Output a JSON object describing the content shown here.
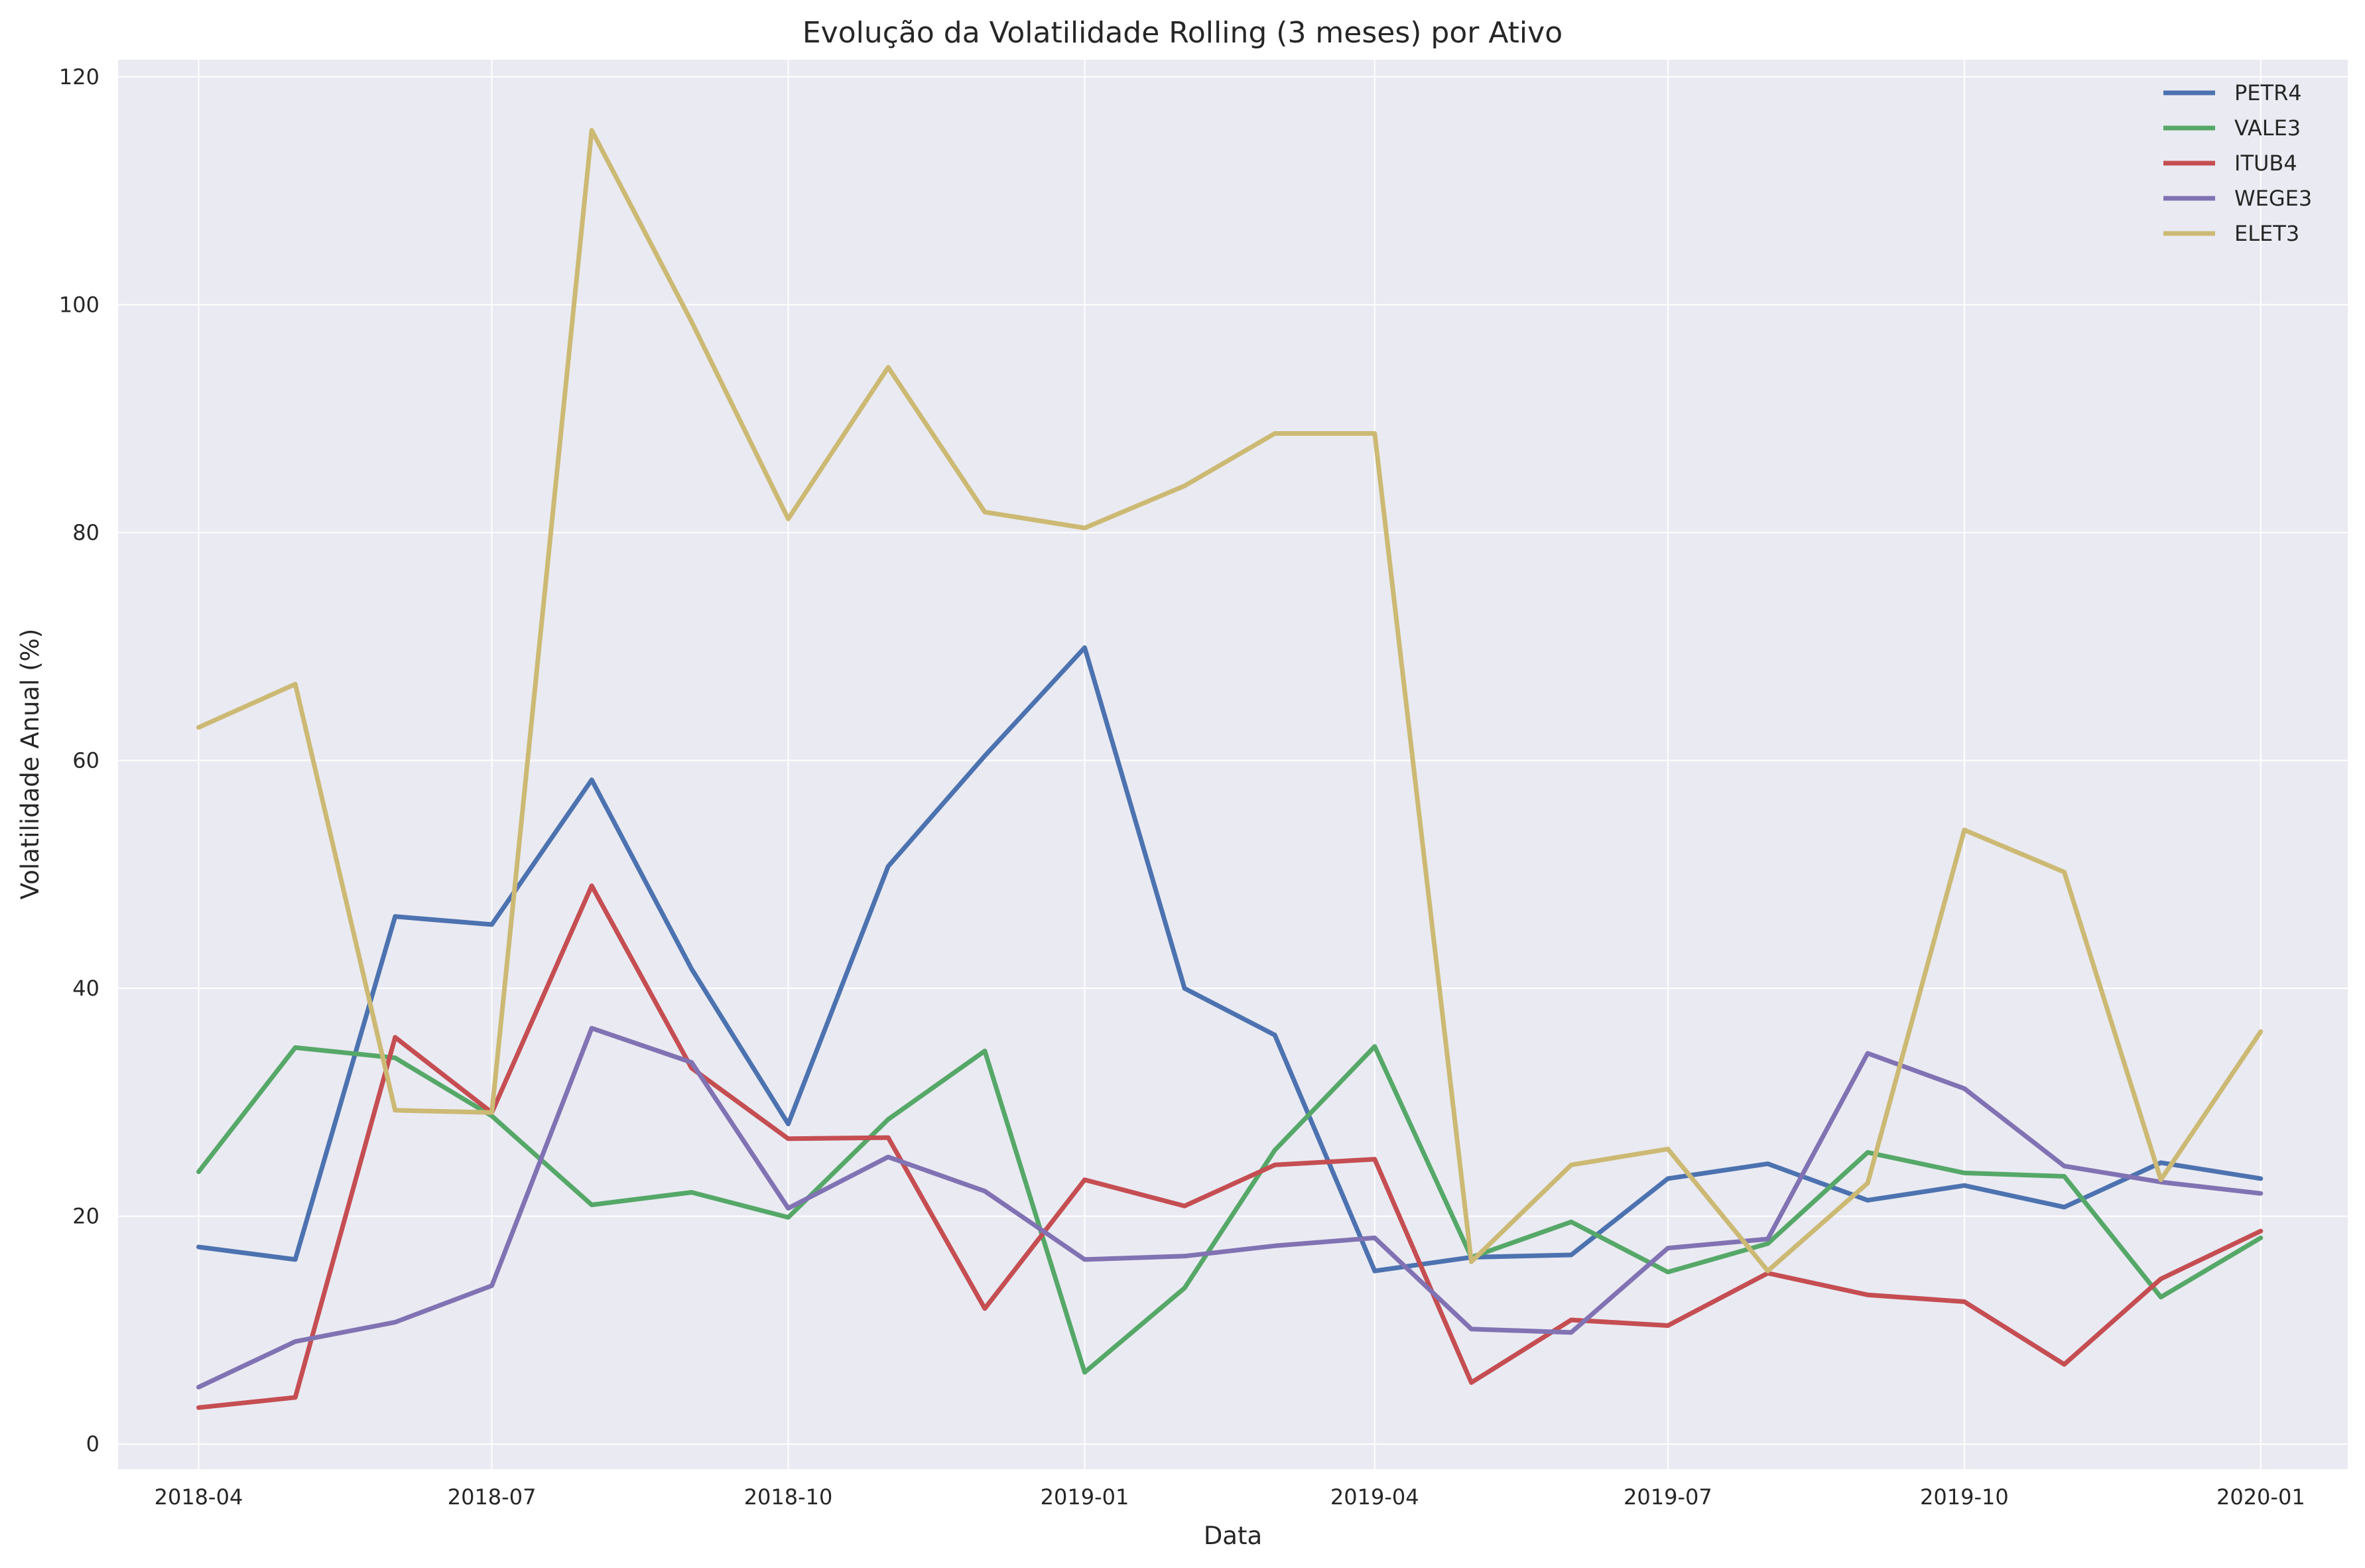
{
  "chart_data": {
    "type": "line",
    "title": "Evolução da Volatilidade Rolling (3 meses) por Ativo",
    "xlabel": "Data",
    "ylabel": "Volatilidade Anual (%)",
    "x": [
      "2018-04-01",
      "2018-05-01",
      "2018-06-01",
      "2018-07-01",
      "2018-08-01",
      "2018-09-01",
      "2018-10-01",
      "2018-11-01",
      "2018-12-01",
      "2019-01-01",
      "2019-02-01",
      "2019-03-01",
      "2019-04-01",
      "2019-05-01",
      "2019-06-01",
      "2019-07-01",
      "2019-08-01",
      "2019-09-01",
      "2019-10-01",
      "2019-11-01",
      "2019-12-01",
      "2020-01-01"
    ],
    "x_ticks": [
      "2018-04",
      "2018-07",
      "2018-10",
      "2019-01",
      "2019-04",
      "2019-07",
      "2019-10",
      "2020-01"
    ],
    "y_ticks": [
      0,
      20,
      40,
      60,
      80,
      100,
      120
    ],
    "ylim": [
      -2.2,
      121.5
    ],
    "grid": true,
    "legend_position": "top-right",
    "series": [
      {
        "name": "PETR4",
        "color": "#4c72b0",
        "values": [
          17.3,
          16.2,
          46.3,
          45.6,
          58.3,
          41.7,
          28.1,
          50.7,
          60.4,
          69.9,
          40.0,
          35.9,
          15.2,
          16.4,
          16.6,
          23.3,
          24.6,
          21.4,
          22.7,
          20.8,
          24.7,
          23.3
        ]
      },
      {
        "name": "VALE3",
        "color": "#55a868",
        "values": [
          23.9,
          34.8,
          33.9,
          28.8,
          21.0,
          22.1,
          19.9,
          28.5,
          34.5,
          6.3,
          13.7,
          25.8,
          34.9,
          16.4,
          19.5,
          15.1,
          17.6,
          25.6,
          23.8,
          23.5,
          12.9,
          18.1
        ]
      },
      {
        "name": "ITUB4",
        "color": "#c44e52",
        "values": [
          3.2,
          4.1,
          35.7,
          29.1,
          49.0,
          33.0,
          26.8,
          26.9,
          11.9,
          23.2,
          20.9,
          24.5,
          25.0,
          5.4,
          10.9,
          10.4,
          15.0,
          13.1,
          12.5,
          7.0,
          14.5,
          18.7
        ]
      },
      {
        "name": "WEGE3",
        "color": "#8172b3",
        "values": [
          5.0,
          9.0,
          10.7,
          13.9,
          36.5,
          33.5,
          20.7,
          25.2,
          22.2,
          16.2,
          16.5,
          17.4,
          18.1,
          10.1,
          9.8,
          17.2,
          18.0,
          34.3,
          31.2,
          24.4,
          23.0,
          22.0
        ]
      },
      {
        "name": "ELET3",
        "color": "#ccb974",
        "values": [
          62.9,
          66.7,
          29.3,
          29.1,
          115.3,
          98.5,
          81.2,
          94.5,
          81.8,
          80.4,
          84.1,
          88.7,
          88.7,
          16.0,
          24.5,
          25.9,
          15.2,
          22.9,
          53.9,
          50.2,
          23.2,
          36.2
        ]
      }
    ]
  }
}
